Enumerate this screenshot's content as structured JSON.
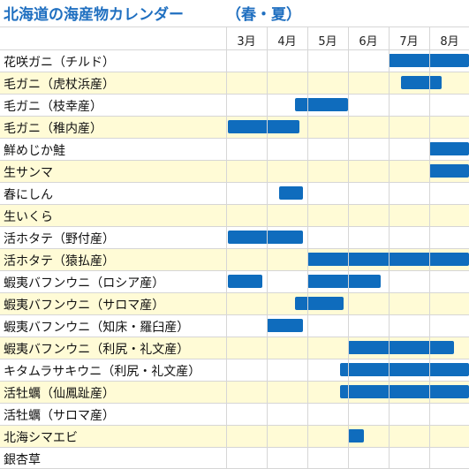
{
  "chart_data": {
    "type": "gantt",
    "title": "北海道の海産物カレンダー",
    "subtitle": "（春・夏）",
    "months": [
      "3月",
      "4月",
      "5月",
      "6月",
      "7月",
      "8月"
    ],
    "month_values": [
      3,
      4,
      5,
      6,
      7,
      8
    ],
    "axis_range": [
      2.0,
      9.0
    ],
    "bar_color": "#0f6cbd",
    "row_colors": [
      "#ffffff",
      "#fffbd6"
    ],
    "rows": [
      {
        "label": "花咲ガニ（チルド）",
        "periods": [
          [
            7.0,
            9.0
          ]
        ]
      },
      {
        "label": "毛ガニ（虎杖浜産）",
        "periods": [
          [
            7.3,
            8.3
          ]
        ]
      },
      {
        "label": "毛ガニ（枝幸産）",
        "periods": [
          [
            4.7,
            6.0
          ]
        ]
      },
      {
        "label": "毛ガニ（稚内産）",
        "periods": [
          [
            3.0,
            4.8
          ]
        ]
      },
      {
        "label": "鮮めじか鮭",
        "periods": [
          [
            8.0,
            9.0
          ]
        ]
      },
      {
        "label": "生サンマ",
        "periods": [
          [
            8.0,
            9.0
          ]
        ]
      },
      {
        "label": "春にしん",
        "periods": [
          [
            4.3,
            4.9
          ]
        ]
      },
      {
        "label": "生いくら",
        "periods": []
      },
      {
        "label": "活ホタテ（野付産）",
        "periods": [
          [
            3.0,
            4.9
          ]
        ]
      },
      {
        "label": "活ホタテ（猿払産）",
        "periods": [
          [
            5.0,
            9.0
          ]
        ]
      },
      {
        "label": "蝦夷バフンウニ（ロシア産）",
        "periods": [
          [
            3.0,
            3.9
          ]
        ],
        "periods_2": [
          [
            5.0,
            6.8
          ]
        ]
      },
      {
        "label": "蝦夷バフンウニ（サロマ産）",
        "periods": [
          [
            4.7,
            5.9
          ]
        ]
      },
      {
        "label": "蝦夷バフンウニ（知床・羅臼産）",
        "periods": [
          [
            4.0,
            4.9
          ]
        ]
      },
      {
        "label": "蝦夷バフンウニ（利尻・礼文産）",
        "periods": [
          [
            6.0,
            8.6
          ]
        ]
      },
      {
        "label": "キタムラサキウニ（利尻・礼文産）",
        "periods": [
          [
            5.8,
            9.0
          ]
        ]
      },
      {
        "label": "活牡蠣（仙鳳趾産）",
        "periods": [
          [
            5.8,
            9.0
          ]
        ]
      },
      {
        "label": "活牡蠣（サロマ産）",
        "periods": []
      },
      {
        "label": "北海シマエビ",
        "periods": [
          [
            6.0,
            6.4
          ]
        ]
      },
      {
        "label": "銀杏草",
        "periods": []
      }
    ]
  }
}
